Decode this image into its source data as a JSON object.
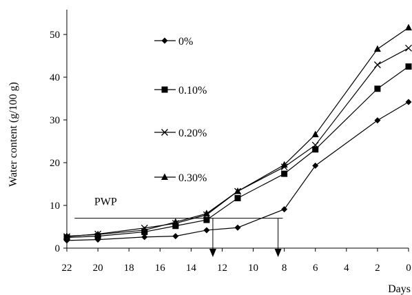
{
  "chart_data": {
    "type": "line",
    "xlabel": "Days",
    "ylabel": "Water content (g/100 g)",
    "xlim": [
      22,
      0
    ],
    "ylim": [
      0,
      55
    ],
    "x_reversed": true,
    "x_ticks": [
      22,
      20,
      18,
      16,
      14,
      12,
      10,
      8,
      6,
      4,
      2,
      0
    ],
    "y_ticks": [
      0,
      10,
      20,
      30,
      40,
      50
    ],
    "grid": false,
    "legend_position": "upper-left inside",
    "x": [
      22,
      20,
      17,
      15,
      13,
      11,
      8,
      6,
      2,
      0
    ],
    "series": [
      {
        "name": "0%",
        "marker": "diamond",
        "values": [
          1.8,
          2.0,
          2.6,
          2.8,
          4.2,
          4.8,
          9.1,
          19.3,
          29.9,
          34.2
        ]
      },
      {
        "name": "0.10%",
        "marker": "square",
        "values": [
          2.5,
          2.8,
          3.8,
          5.2,
          6.6,
          11.7,
          17.4,
          23.1,
          37.3,
          42.5
        ]
      },
      {
        "name": "0.20%",
        "marker": "x",
        "values": [
          2.7,
          3.3,
          4.7,
          5.8,
          7.8,
          13.3,
          19.0,
          24.1,
          42.9,
          46.8
        ]
      },
      {
        "name": "0.30%",
        "marker": "triangle",
        "values": [
          2.8,
          3.2,
          4.2,
          6.1,
          8.1,
          13.3,
          19.5,
          26.6,
          46.6,
          51.6
        ]
      }
    ],
    "annotations": {
      "pwp_label": "PWP",
      "pwp_level": 7.0,
      "pwp_x_start": 21.5,
      "pwp_x_end": 8.1,
      "pwp_arrows_x": [
        12.6,
        8.4
      ]
    }
  }
}
